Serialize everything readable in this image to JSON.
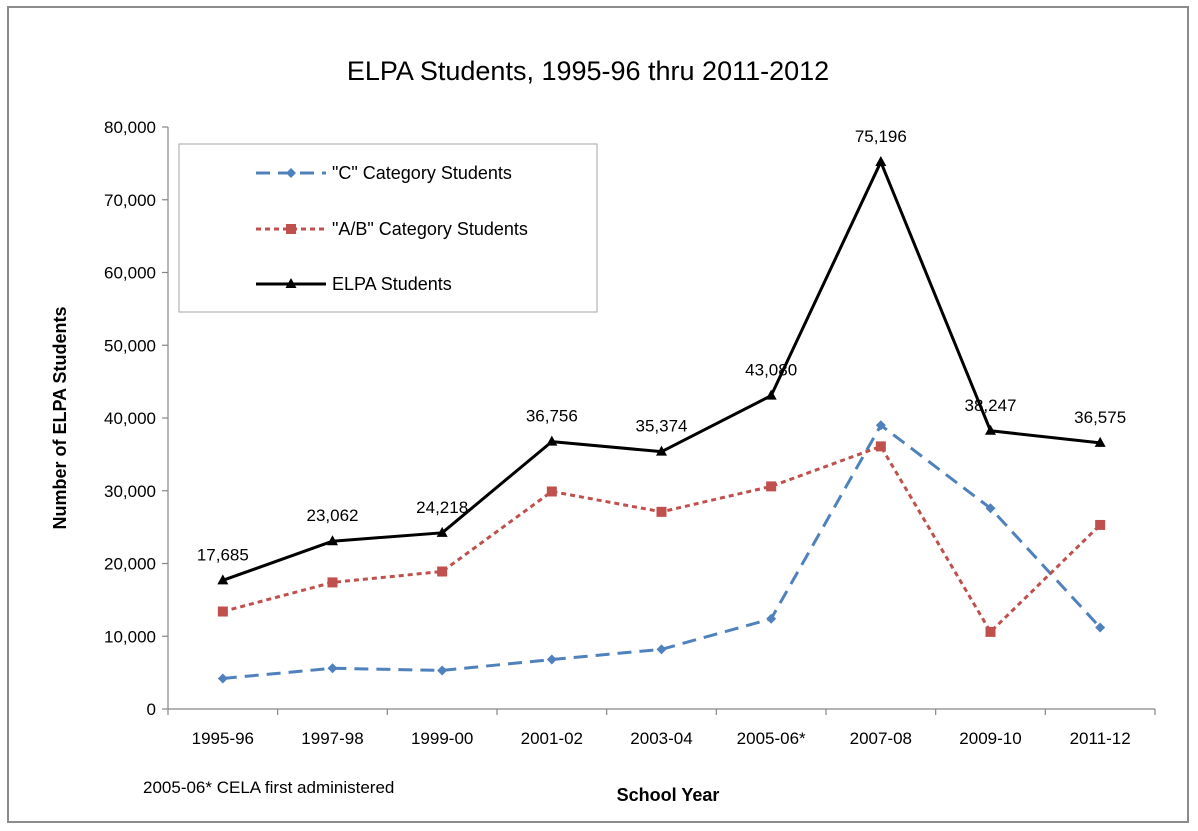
{
  "chart_data": {
    "type": "line",
    "title": "ELPA Students, 1995-96  thru 2011-2012",
    "xlabel": "School Year",
    "ylabel": "Number of ELPA Students",
    "ylim": [
      0,
      80000
    ],
    "y_ticks": [
      0,
      10000,
      20000,
      30000,
      40000,
      50000,
      60000,
      70000,
      80000
    ],
    "y_tick_labels": [
      "0",
      "10,000",
      "20,000",
      "30,000",
      "40,000",
      "50,000",
      "60,000",
      "70,000",
      "80,000"
    ],
    "categories": [
      "1995-96",
      "1997-98",
      "1999-00",
      "2001-02",
      "2003-04",
      "2005-06*",
      "2007-08",
      "2009-10",
      "2011-12"
    ],
    "grid": false,
    "legend_position": "top-left",
    "note": "2005-06* CELA first administered",
    "series": [
      {
        "name": "\"C\" Category Students",
        "color": "#4f81bd",
        "style": "dashed",
        "marker": "diamond",
        "values": [
          4200,
          5600,
          5300,
          6800,
          8200,
          12400,
          39000,
          27600,
          11200
        ]
      },
      {
        "name": "\"A/B\" Category Students",
        "color": "#c0504d",
        "style": "dotted",
        "marker": "square",
        "values": [
          13400,
          17400,
          18900,
          29900,
          27100,
          30600,
          36100,
          10600,
          25300
        ]
      },
      {
        "name": "ELPA Students",
        "color": "#000000",
        "style": "solid",
        "marker": "triangle",
        "values": [
          17685,
          23062,
          24218,
          36756,
          35374,
          43080,
          75196,
          38247,
          36575
        ],
        "data_labels": [
          "17,685",
          "23,062",
          "24,218",
          "36,756",
          "35,374",
          "43,080",
          "75,196",
          "38,247",
          "36,575"
        ]
      }
    ]
  }
}
